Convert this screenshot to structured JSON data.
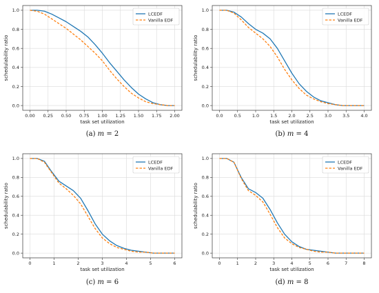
{
  "chart_data": [
    {
      "type": "line",
      "caption": "(a)  m = 2",
      "caption_prefix": "(a)",
      "caption_var": "m",
      "caption_value": "= 2",
      "xlabel": "task set utilization",
      "ylabel": "schedulability ratio",
      "xlim": [
        -0.1,
        2.1
      ],
      "ylim": [
        -0.05,
        1.05
      ],
      "xticks": [
        "0.00",
        "0.25",
        "0.50",
        "0.75",
        "1.00",
        "1.25",
        "1.50",
        "1.75",
        "2.00"
      ],
      "xtick_values": [
        0,
        0.25,
        0.5,
        0.75,
        1.0,
        1.25,
        1.5,
        1.75,
        2.0
      ],
      "yticks": [
        "0.0",
        "0.2",
        "0.4",
        "0.6",
        "0.8",
        "1.0"
      ],
      "ytick_values": [
        0,
        0.2,
        0.4,
        0.6,
        0.8,
        1.0
      ],
      "grid": true,
      "legend_position": "top-right",
      "series": [
        {
          "name": "LCEDF",
          "color": "#1f77b4",
          "style": "solid",
          "x": [
            0,
            0.1,
            0.2,
            0.3,
            0.4,
            0.5,
            0.6,
            0.7,
            0.8,
            0.9,
            1.0,
            1.1,
            1.2,
            1.3,
            1.4,
            1.5,
            1.6,
            1.7,
            1.8,
            1.9,
            2.0
          ],
          "y": [
            1.0,
            1.0,
            0.99,
            0.96,
            0.92,
            0.88,
            0.83,
            0.78,
            0.72,
            0.64,
            0.55,
            0.45,
            0.36,
            0.27,
            0.19,
            0.12,
            0.07,
            0.03,
            0.01,
            0.0,
            0.0
          ]
        },
        {
          "name": "Vanilla EDF",
          "color": "#ff7f0e",
          "style": "dashed",
          "x": [
            0,
            0.1,
            0.2,
            0.3,
            0.4,
            0.5,
            0.6,
            0.7,
            0.8,
            0.9,
            1.0,
            1.1,
            1.2,
            1.3,
            1.4,
            1.5,
            1.6,
            1.7,
            1.8,
            1.9,
            2.0
          ],
          "y": [
            1.0,
            0.99,
            0.96,
            0.91,
            0.86,
            0.81,
            0.75,
            0.69,
            0.62,
            0.55,
            0.47,
            0.37,
            0.28,
            0.2,
            0.13,
            0.08,
            0.04,
            0.02,
            0.01,
            0.0,
            0.0
          ]
        }
      ]
    },
    {
      "type": "line",
      "caption": "(b)  m = 4",
      "caption_prefix": "(b)",
      "caption_var": "m",
      "caption_value": "= 4",
      "xlabel": "task set utilization",
      "ylabel": "schedulability ratio",
      "xlim": [
        -0.2,
        4.2
      ],
      "ylim": [
        -0.05,
        1.05
      ],
      "xticks": [
        "0.0",
        "0.5",
        "1.0",
        "1.5",
        "2.0",
        "2.5",
        "3.0",
        "3.5",
        "4.0"
      ],
      "xtick_values": [
        0,
        0.5,
        1.0,
        1.5,
        2.0,
        2.5,
        3.0,
        3.5,
        4.0
      ],
      "yticks": [
        "0.0",
        "0.2",
        "0.4",
        "0.6",
        "0.8",
        "1.0"
      ],
      "ytick_values": [
        0,
        0.2,
        0.4,
        0.6,
        0.8,
        1.0
      ],
      "grid": true,
      "legend_position": "top-right",
      "series": [
        {
          "name": "LCEDF",
          "color": "#1f77b4",
          "style": "solid",
          "x": [
            0,
            0.2,
            0.4,
            0.6,
            0.8,
            1.0,
            1.2,
            1.4,
            1.6,
            1.8,
            2.0,
            2.2,
            2.4,
            2.6,
            2.8,
            3.0,
            3.2,
            3.4,
            3.6,
            3.8,
            4.0
          ],
          "y": [
            1.0,
            1.0,
            0.98,
            0.93,
            0.86,
            0.8,
            0.76,
            0.7,
            0.6,
            0.47,
            0.34,
            0.23,
            0.15,
            0.09,
            0.05,
            0.03,
            0.01,
            0.0,
            0.0,
            0.0,
            0.0
          ]
        },
        {
          "name": "Vanilla EDF",
          "color": "#ff7f0e",
          "style": "dashed",
          "x": [
            0,
            0.2,
            0.4,
            0.6,
            0.8,
            1.0,
            1.2,
            1.4,
            1.6,
            1.8,
            2.0,
            2.2,
            2.4,
            2.6,
            2.8,
            3.0,
            3.2,
            3.4,
            3.6,
            3.8,
            4.0
          ],
          "y": [
            1.0,
            1.0,
            0.97,
            0.9,
            0.82,
            0.76,
            0.7,
            0.62,
            0.51,
            0.38,
            0.27,
            0.18,
            0.11,
            0.07,
            0.04,
            0.02,
            0.01,
            0.0,
            0.0,
            0.0,
            0.0
          ]
        }
      ]
    },
    {
      "type": "line",
      "caption": "(c)  m = 6",
      "caption_prefix": "(c)",
      "caption_var": "m",
      "caption_value": "= 6",
      "xlabel": "task set utilization",
      "ylabel": "schedulability ratio",
      "xlim": [
        -0.3,
        6.3
      ],
      "ylim": [
        -0.05,
        1.05
      ],
      "xticks": [
        "0",
        "1",
        "2",
        "3",
        "4",
        "5",
        "6"
      ],
      "xtick_values": [
        0,
        1,
        2,
        3,
        4,
        5,
        6
      ],
      "yticks": [
        "0.0",
        "0.2",
        "0.4",
        "0.6",
        "0.8",
        "1.0"
      ],
      "ytick_values": [
        0,
        0.2,
        0.4,
        0.6,
        0.8,
        1.0
      ],
      "grid": true,
      "legend_position": "top-right",
      "series": [
        {
          "name": "LCEDF",
          "color": "#1f77b4",
          "style": "solid",
          "x": [
            0,
            0.3,
            0.6,
            0.9,
            1.2,
            1.5,
            1.8,
            2.1,
            2.4,
            2.7,
            3.0,
            3.3,
            3.6,
            3.9,
            4.2,
            4.5,
            4.8,
            5.1,
            5.4,
            5.7,
            6.0
          ],
          "y": [
            1.0,
            1.0,
            0.97,
            0.86,
            0.76,
            0.71,
            0.66,
            0.58,
            0.45,
            0.31,
            0.2,
            0.13,
            0.08,
            0.05,
            0.03,
            0.02,
            0.01,
            0.0,
            0.0,
            0.0,
            0.0
          ]
        },
        {
          "name": "Vanilla EDF",
          "color": "#ff7f0e",
          "style": "dashed",
          "x": [
            0,
            0.3,
            0.6,
            0.9,
            1.2,
            1.5,
            1.8,
            2.1,
            2.4,
            2.7,
            3.0,
            3.3,
            3.6,
            3.9,
            4.2,
            4.5,
            4.8,
            5.1,
            5.4,
            5.7,
            6.0
          ],
          "y": [
            1.0,
            1.0,
            0.96,
            0.85,
            0.74,
            0.68,
            0.61,
            0.52,
            0.39,
            0.26,
            0.16,
            0.1,
            0.06,
            0.04,
            0.02,
            0.01,
            0.01,
            0.0,
            0.0,
            0.0,
            0.0
          ]
        }
      ]
    },
    {
      "type": "line",
      "caption": "(d)  m = 8",
      "caption_prefix": "(d)",
      "caption_var": "m",
      "caption_value": "= 8",
      "xlabel": "task set utilization",
      "ylabel": "schedulability ratio",
      "xlim": [
        -0.4,
        8.4
      ],
      "ylim": [
        -0.05,
        1.05
      ],
      "xticks": [
        "0",
        "1",
        "2",
        "3",
        "4",
        "5",
        "6",
        "7",
        "8"
      ],
      "xtick_values": [
        0,
        1,
        2,
        3,
        4,
        5,
        6,
        7,
        8
      ],
      "yticks": [
        "0.0",
        "0.2",
        "0.4",
        "0.6",
        "0.8",
        "1.0"
      ],
      "ytick_values": [
        0,
        0.2,
        0.4,
        0.6,
        0.8,
        1.0
      ],
      "grid": true,
      "legend_position": "top-right",
      "series": [
        {
          "name": "LCEDF",
          "color": "#1f77b4",
          "style": "solid",
          "x": [
            0,
            0.4,
            0.8,
            1.2,
            1.6,
            2.0,
            2.4,
            2.8,
            3.2,
            3.6,
            4.0,
            4.4,
            4.8,
            5.2,
            5.6,
            6.0,
            6.4,
            6.8,
            7.2,
            7.6,
            8.0
          ],
          "y": [
            1.0,
            1.0,
            0.96,
            0.8,
            0.68,
            0.64,
            0.58,
            0.46,
            0.32,
            0.2,
            0.12,
            0.07,
            0.04,
            0.03,
            0.02,
            0.01,
            0.0,
            0.0,
            0.0,
            0.0,
            0.0
          ]
        },
        {
          "name": "Vanilla EDF",
          "color": "#ff7f0e",
          "style": "dashed",
          "x": [
            0,
            0.4,
            0.8,
            1.2,
            1.6,
            2.0,
            2.4,
            2.8,
            3.2,
            3.6,
            4.0,
            4.4,
            4.8,
            5.2,
            5.6,
            6.0,
            6.4,
            6.8,
            7.2,
            7.6,
            8.0
          ],
          "y": [
            1.0,
            1.0,
            0.96,
            0.79,
            0.66,
            0.61,
            0.54,
            0.41,
            0.27,
            0.16,
            0.1,
            0.06,
            0.04,
            0.02,
            0.01,
            0.01,
            0.0,
            0.0,
            0.0,
            0.0,
            0.0
          ]
        }
      ]
    }
  ]
}
